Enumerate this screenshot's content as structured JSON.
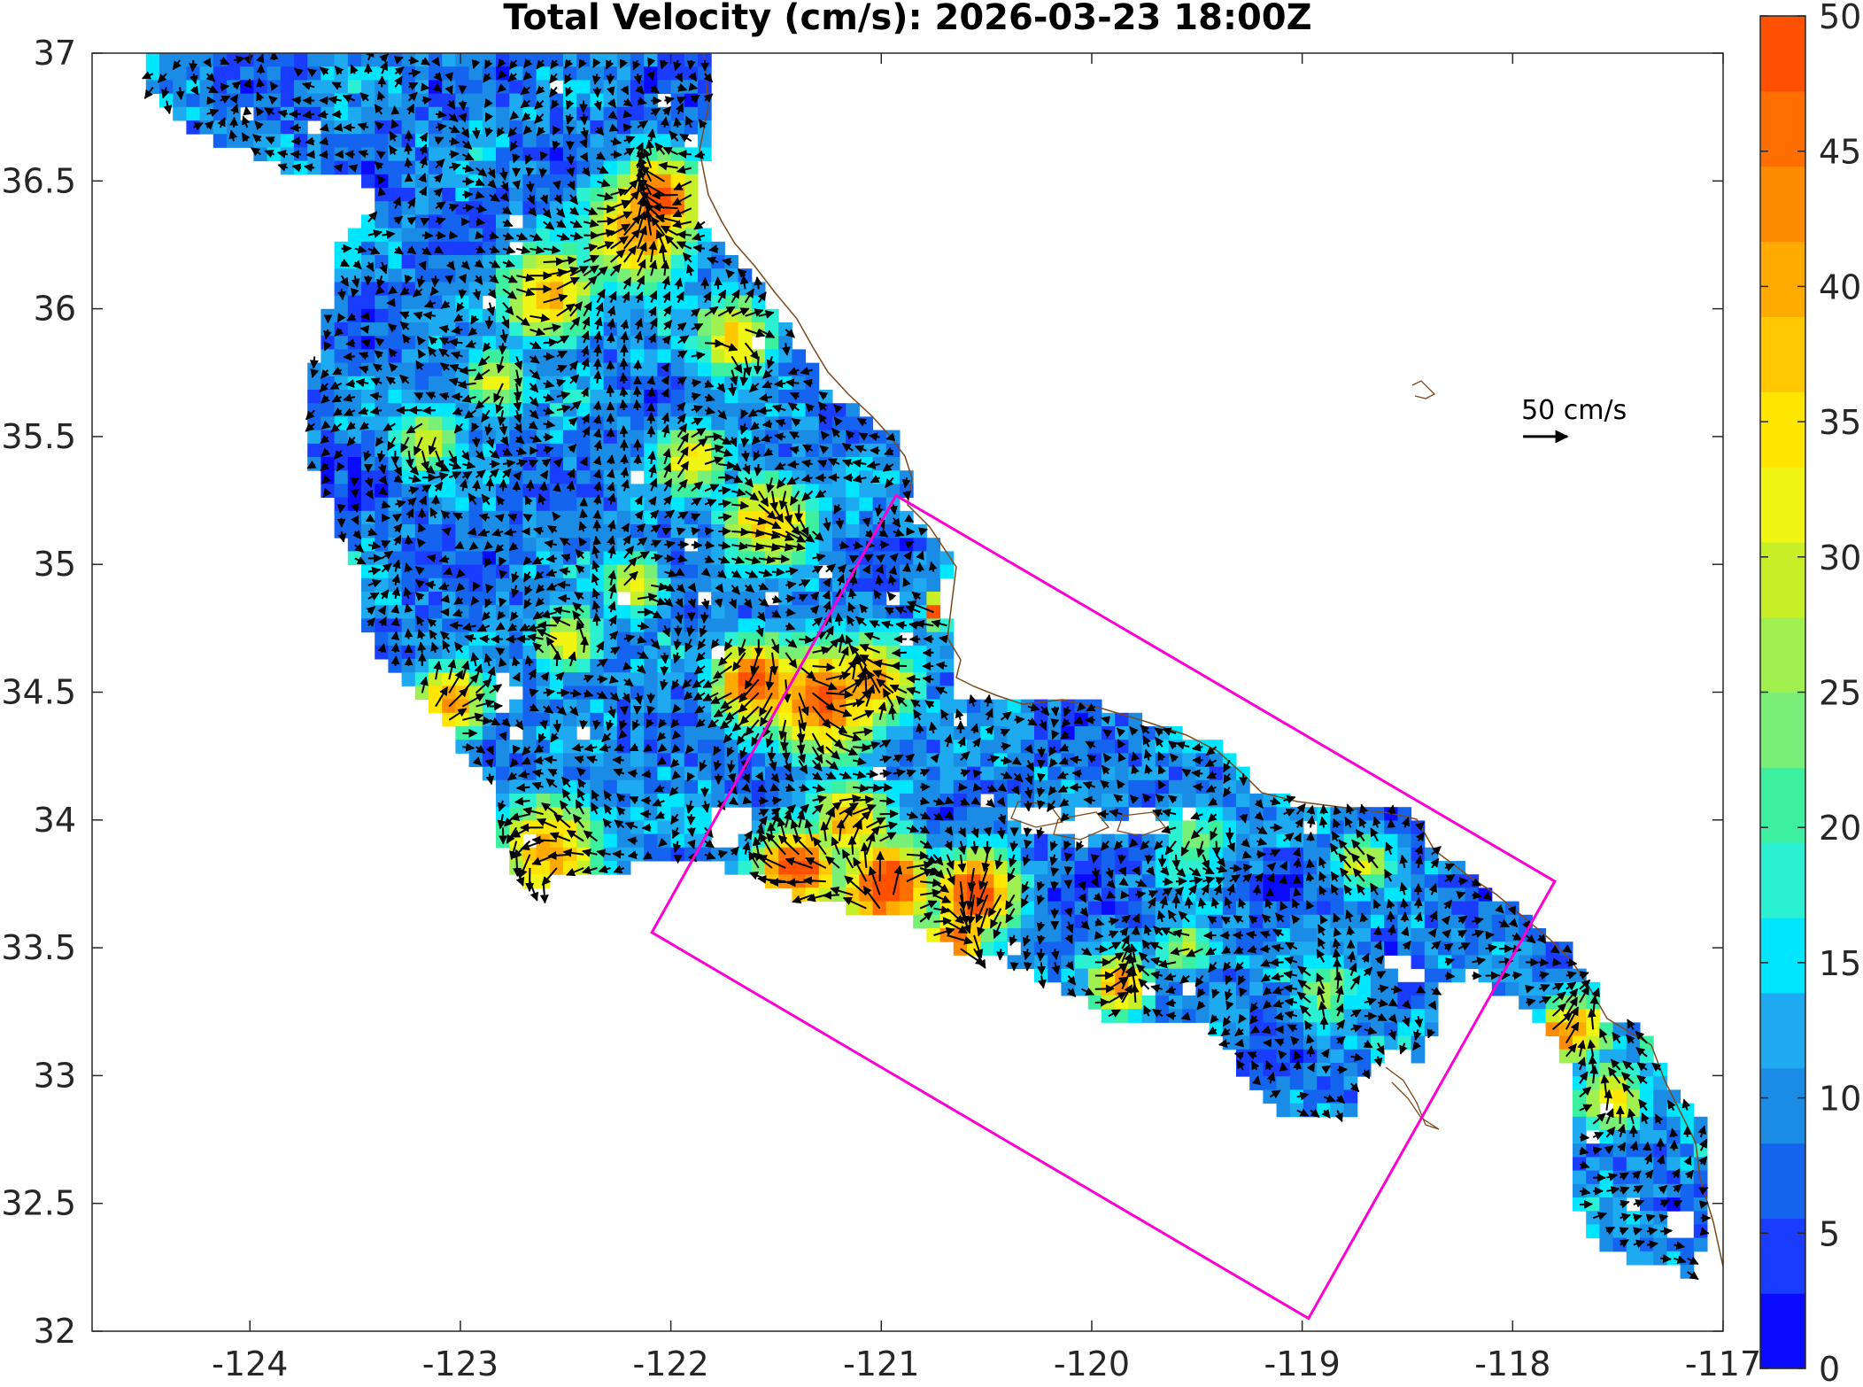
{
  "title": "Total Velocity (cm/s): 2026-03-23 18:00Z",
  "x_axis": {
    "ticks": [
      "-124",
      "-123",
      "-122",
      "-121",
      "-120",
      "-119",
      "-118",
      "-117"
    ],
    "values": [
      -124,
      -123,
      -122,
      -121,
      -120,
      -119,
      -118,
      -117
    ],
    "range": [
      -124.75,
      -117
    ]
  },
  "y_axis": {
    "ticks": [
      "37",
      "36.5",
      "36",
      "35.5",
      "35",
      "34.5",
      "34",
      "33.5",
      "33",
      "32.5",
      "32"
    ],
    "values": [
      37,
      36.5,
      36,
      35.5,
      35,
      34.5,
      34,
      33.5,
      33,
      32.5,
      32
    ],
    "range": [
      32,
      37
    ]
  },
  "colorbar": {
    "ticks": [
      "0",
      "5",
      "10",
      "15",
      "20",
      "25",
      "30",
      "35",
      "40",
      "45",
      "50"
    ],
    "values": [
      0,
      5,
      10,
      15,
      20,
      25,
      30,
      35,
      40,
      45,
      50
    ],
    "range": [
      0,
      50
    ],
    "colors": [
      "#0a0aff",
      "#1a3cff",
      "#1464f0",
      "#1a8ce6",
      "#1eaaf0",
      "#00e6ff",
      "#2cf0d2",
      "#3cf0a0",
      "#78f078",
      "#a0f050",
      "#c8f028",
      "#f0f514",
      "#ffe600",
      "#ffc800",
      "#ffaa00",
      "#ff8c00",
      "#ff6e00",
      "#ff5000"
    ]
  },
  "scale_arrow": {
    "label": "50 cm/s",
    "value": 50,
    "lon": -117.9,
    "lat": 35.5
  },
  "domain_box": {
    "corners": [
      [
        -120.93,
        35.27
      ],
      [
        -117.8,
        33.76
      ],
      [
        -118.97,
        32.05
      ],
      [
        -122.09,
        33.56
      ]
    ]
  },
  "colors": {
    "box": "#ff00d2",
    "coast": "#7a4a1c",
    "arrow": "#000000",
    "axis": "#262626"
  }
}
